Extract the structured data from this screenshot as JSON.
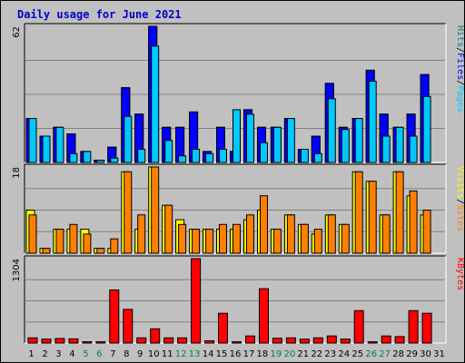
{
  "chart_data": {
    "type": "bar",
    "title": "Daily usage for June 2021",
    "categories": [
      "1",
      "2",
      "3",
      "4",
      "5",
      "6",
      "7",
      "8",
      "9",
      "10",
      "11",
      "12",
      "13",
      "14",
      "15",
      "16",
      "17",
      "18",
      "19",
      "20",
      "21",
      "22",
      "23",
      "24",
      "25",
      "26",
      "27",
      "28",
      "29",
      "30",
      "31"
    ],
    "weekend_days": [
      "5",
      "6",
      "12",
      "13",
      "19",
      "20",
      "26",
      "27"
    ],
    "panels": [
      {
        "name": "hits-files-pages",
        "ymax": 62,
        "max_label": "62",
        "ylim": [
          0,
          62
        ],
        "side_labels": [
          {
            "text": "Pages",
            "color": "#00c8ff"
          },
          {
            "text": "/",
            "color": "#000000"
          },
          {
            "text": "Files",
            "color": "#0000ff"
          },
          {
            "text": "/",
            "color": "#000000"
          },
          {
            "text": "Hits",
            "color": "#008080"
          }
        ],
        "series": [
          {
            "name": "Hits",
            "color": "#008080",
            "values": [
              20,
              12,
              16,
              13,
              5,
              1,
              7,
              34,
              22,
              62,
              16,
              16,
              23,
              5,
              16,
              5,
              24,
              16,
              16,
              20,
              6,
              12,
              36,
              16,
              20,
              42,
              22,
              16,
              22,
              40
            ]
          },
          {
            "name": "Files",
            "color": "#0000ff",
            "values": [
              20,
              12,
              16,
              13,
              5,
              1,
              7,
              34,
              22,
              62,
              16,
              16,
              23,
              5,
              16,
              5,
              24,
              16,
              16,
              20,
              6,
              12,
              36,
              16,
              20,
              42,
              22,
              16,
              22,
              40
            ]
          },
          {
            "name": "Pages",
            "color": "#00c8ff",
            "values": [
              20,
              12,
              16,
              4,
              5,
              1,
              2,
              21,
              6,
              53,
              10,
              3,
              6,
              4,
              6,
              24,
              22,
              9,
              16,
              20,
              6,
              4,
              29,
              15,
              20,
              37,
              12,
              16,
              12,
              30
            ]
          }
        ]
      },
      {
        "name": "visits-sites",
        "ymax": 18,
        "max_label": "18",
        "ylim": [
          0,
          18
        ],
        "side_labels": [
          {
            "text": "Sites",
            "color": "#ff8000"
          },
          {
            "text": "/",
            "color": "#000000"
          },
          {
            "text": "Visits",
            "color": "#ffff00"
          }
        ],
        "series": [
          {
            "name": "Visits",
            "color": "#ffff00",
            "values": [
              9,
              1,
              5,
              5,
              5,
              1,
              1,
              17,
              5,
              18,
              10,
              7,
              5,
              5,
              5,
              5,
              7,
              9,
              5,
              8,
              6,
              4,
              8,
              6,
              17,
              15,
              8,
              17,
              12,
              8
            ]
          },
          {
            "name": "Sites",
            "color": "#ff8000",
            "values": [
              8,
              1,
              5,
              6,
              4,
              1,
              3,
              17,
              8,
              18,
              10,
              6,
              5,
              5,
              6,
              6,
              8,
              12,
              5,
              8,
              6,
              5,
              8,
              6,
              17,
              15,
              8,
              17,
              13,
              9
            ]
          }
        ]
      },
      {
        "name": "kbytes",
        "ymax": 1304,
        "max_label": "1304",
        "ylim": [
          0,
          1304
        ],
        "side_labels": [
          {
            "text": "KBytes",
            "color": "#ff0000"
          }
        ],
        "series": [
          {
            "name": "KBytes",
            "color": "#ff0000",
            "values": [
              80,
              60,
              70,
              65,
              20,
              20,
              820,
              520,
              80,
              220,
              80,
              80,
              1304,
              35,
              460,
              20,
              110,
              840,
              75,
              80,
              60,
              80,
              110,
              60,
              500,
              20,
              110,
              100,
              500,
              460
            ]
          }
        ]
      }
    ]
  }
}
